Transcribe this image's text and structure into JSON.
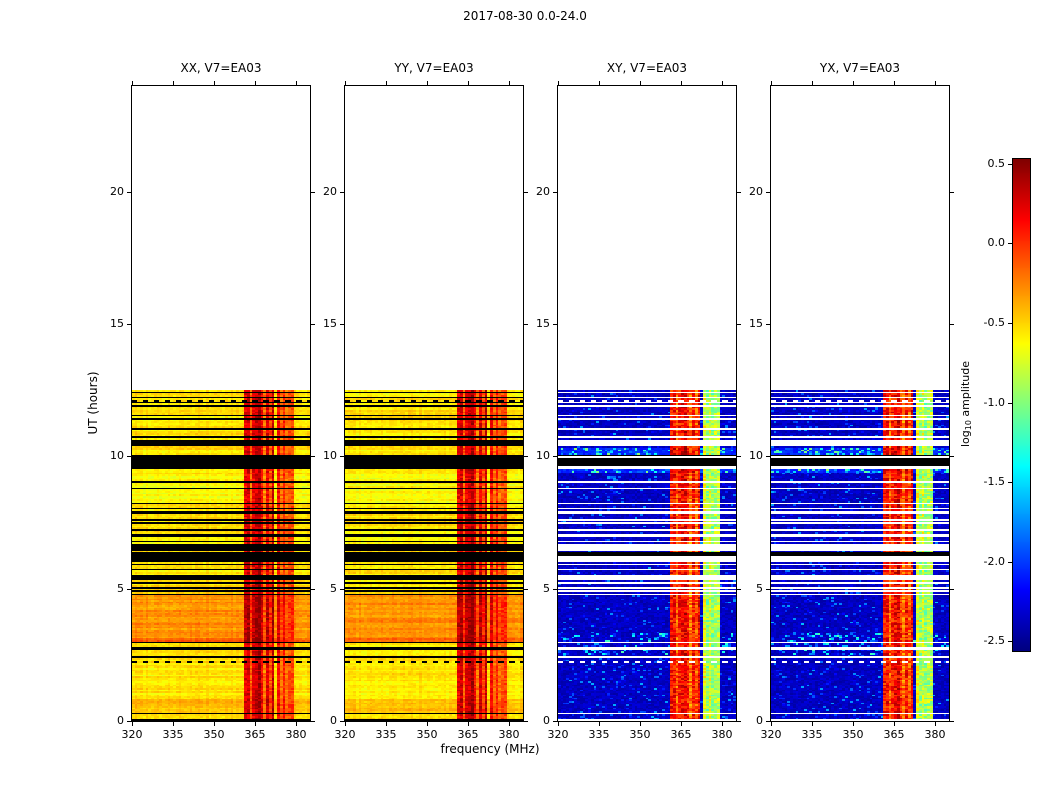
{
  "chart_data": {
    "type": "heatmap",
    "title": "2017-08-30 0.0-24.0",
    "xlabel": "frequency (MHz)",
    "ylabel": "UT (hours)",
    "xlim": [
      320,
      385
    ],
    "ylim": [
      0,
      24
    ],
    "xticks": [
      320,
      335,
      350,
      365,
      380
    ],
    "yticks": [
      0,
      5,
      10,
      15,
      20
    ],
    "grid": false,
    "panels": [
      {
        "title": "XX, V7=EA03",
        "kind": "parallel"
      },
      {
        "title": "YY, V7=EA03",
        "kind": "parallel"
      },
      {
        "title": "XY, V7=EA03",
        "kind": "cross"
      },
      {
        "title": "YX, V7=EA03",
        "kind": "cross"
      }
    ],
    "colorbar": {
      "label_pre": "log",
      "label_sub": "10",
      "label_post": " amplitude",
      "tick_labels": [
        "0.5",
        "0.0",
        "-0.5",
        "-1.0",
        "-1.5",
        "-2.0",
        "-2.5"
      ],
      "tick_values": [
        0.5,
        0.0,
        -0.5,
        -1.0,
        -1.5,
        -2.0,
        -2.5
      ],
      "vmin": -2.56,
      "vmax": 0.53,
      "cmap": "jet"
    },
    "data_extent": {
      "time_hours": [
        0,
        12.5
      ],
      "freq_mhz": [
        320,
        385
      ],
      "note_blank_above_hours": 12.5
    },
    "features": {
      "parallel_base_level": -0.55,
      "cross_base_level": -2.45,
      "rfi_band1_mhz": [
        361.5,
        371.5
      ],
      "rfi_band2_mhz": [
        373.5,
        379
      ],
      "bright_time_band_hours": [
        3.0,
        4.75
      ],
      "red_time_line_hours": 3.0,
      "flagged_solid_blocks_hours": [
        [
          6.0,
          6.35
        ],
        [
          9.55,
          10.05
        ]
      ],
      "dashed_flag_rows_hours": [
        2.2,
        12.1
      ],
      "flag_color_parallel": "#000000",
      "flag_color_cross": "#ffffff"
    }
  }
}
